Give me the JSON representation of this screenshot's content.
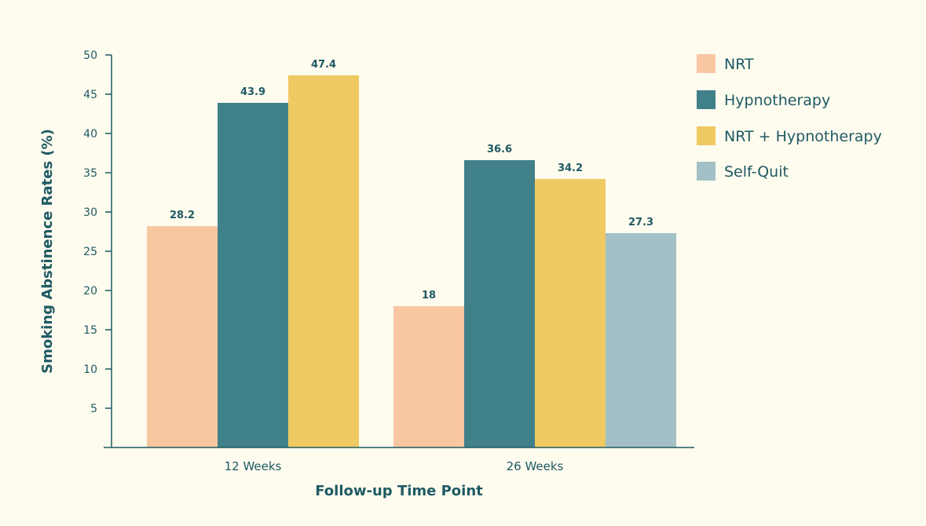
{
  "chart_data": {
    "type": "bar",
    "title": "",
    "xlabel": "Follow-up Time Point",
    "ylabel": "Smoking Abstinence Rates (%)",
    "ylim": [
      0,
      50
    ],
    "yticks": [
      5,
      10,
      15,
      20,
      25,
      30,
      35,
      40,
      45,
      50
    ],
    "categories": [
      "12 Weeks",
      "26 Weeks"
    ],
    "series": [
      {
        "name": "NRT",
        "color": "#f8c7a2",
        "values": [
          28.2,
          18
        ]
      },
      {
        "name": "Hypnotherapy",
        "color": "#408089",
        "values": [
          43.9,
          36.6
        ]
      },
      {
        "name": "NRT + Hypnotherapy",
        "color": "#efc962",
        "values": [
          47.4,
          34.2
        ]
      },
      {
        "name": "Self-Quit",
        "color": "#a2c0c5",
        "values": [
          null,
          27.3
        ]
      }
    ],
    "legend_position": "top-right",
    "grid": false
  }
}
